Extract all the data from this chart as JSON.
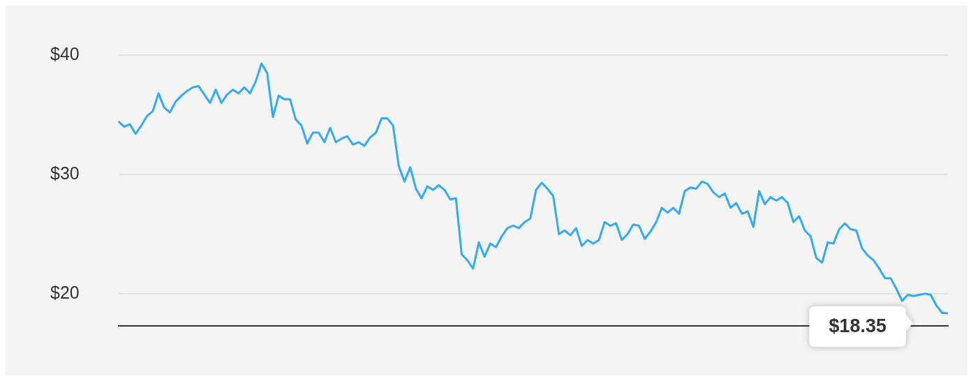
{
  "chart_data": {
    "type": "line",
    "categories": [
      null,
      null,
      null,
      null,
      null,
      null,
      null,
      null,
      null,
      null,
      null,
      null,
      null,
      null,
      null,
      null,
      null,
      null,
      null,
      null,
      null,
      null,
      null,
      null,
      null,
      null,
      null,
      null,
      null,
      null,
      null,
      null,
      null,
      null,
      null,
      null,
      null,
      null,
      null,
      null,
      null,
      null,
      null,
      null,
      null,
      null,
      null,
      null,
      null,
      null,
      null,
      null,
      null,
      null,
      null,
      null,
      null,
      null,
      null,
      null,
      null,
      null,
      null,
      null,
      null,
      null,
      null,
      null,
      null,
      null,
      null,
      null,
      null,
      null,
      null,
      null,
      null,
      null,
      null,
      null,
      null,
      null,
      null,
      null,
      null,
      null,
      null,
      null,
      null,
      null,
      null,
      null,
      null,
      null,
      null,
      null,
      null,
      null,
      null,
      null,
      null,
      null,
      null,
      null,
      null,
      null,
      null,
      null,
      null,
      null,
      null,
      null,
      null,
      null,
      null,
      null,
      null,
      null,
      null,
      null,
      null,
      null,
      null,
      null,
      null,
      null,
      null,
      null,
      null,
      null,
      null,
      null,
      null,
      null,
      null,
      null,
      null,
      null,
      null,
      null,
      null,
      null,
      null,
      null,
      null,
      null
    ],
    "series": [
      {
        "color": "#33aaf2",
        "values": [
          34.45,
          34.0,
          34.2,
          33.4,
          34.1,
          34.9,
          35.3,
          36.8,
          35.6,
          35.2,
          36.1,
          36.6,
          37.0,
          37.3,
          37.4,
          36.7,
          36.0,
          37.1,
          36.0,
          36.7,
          37.1,
          36.8,
          37.3,
          36.8,
          37.8,
          39.3,
          38.5,
          34.8,
          36.6,
          36.3,
          36.3,
          34.6,
          34.1,
          32.6,
          33.5,
          33.5,
          32.7,
          33.9,
          32.7,
          33.0,
          33.2,
          32.5,
          32.7,
          32.4,
          33.1,
          33.5,
          34.7,
          34.7,
          34.1,
          30.7,
          29.4,
          30.6,
          28.8,
          28.0,
          29.0,
          28.7,
          29.1,
          28.7,
          27.9,
          28.0,
          23.3,
          22.8,
          22.1,
          24.3,
          23.1,
          24.2,
          23.9,
          24.8,
          25.5,
          25.7,
          25.5,
          26.0,
          26.3,
          28.7,
          29.3,
          28.8,
          28.2,
          25.0,
          25.3,
          24.9,
          25.5,
          24.0,
          24.5,
          24.2,
          24.5,
          26.0,
          25.7,
          25.9,
          24.5,
          25.0,
          25.8,
          25.7,
          24.6,
          25.2,
          26.0,
          27.2,
          26.8,
          27.2,
          26.7,
          28.6,
          28.9,
          28.8,
          29.4,
          29.2,
          28.5,
          28.1,
          28.4,
          27.2,
          27.6,
          26.7,
          26.9,
          25.6,
          28.6,
          27.5,
          28.1,
          27.8,
          28.1,
          27.6,
          26.0,
          26.5,
          25.3,
          24.8,
          23.0,
          22.6,
          24.3,
          24.2,
          25.4,
          25.9,
          25.4,
          25.3,
          23.8,
          23.2,
          22.8,
          22.1,
          21.3,
          21.3,
          20.4,
          19.4,
          19.9,
          19.8,
          19.9,
          20.0,
          19.9,
          19.0,
          18.4,
          18.35
        ]
      }
    ],
    "ylim": [
      17.3,
      40
    ],
    "yticks": [
      {
        "value": 20,
        "label": "$20"
      },
      {
        "value": 30,
        "label": "$30"
      },
      {
        "value": 40,
        "label": "$40"
      }
    ],
    "grid": "y",
    "legend": false,
    "tick_labels": "y",
    "marker": "none",
    "line_style": "solid",
    "annotations": [
      "$18.35"
    ]
  }
}
